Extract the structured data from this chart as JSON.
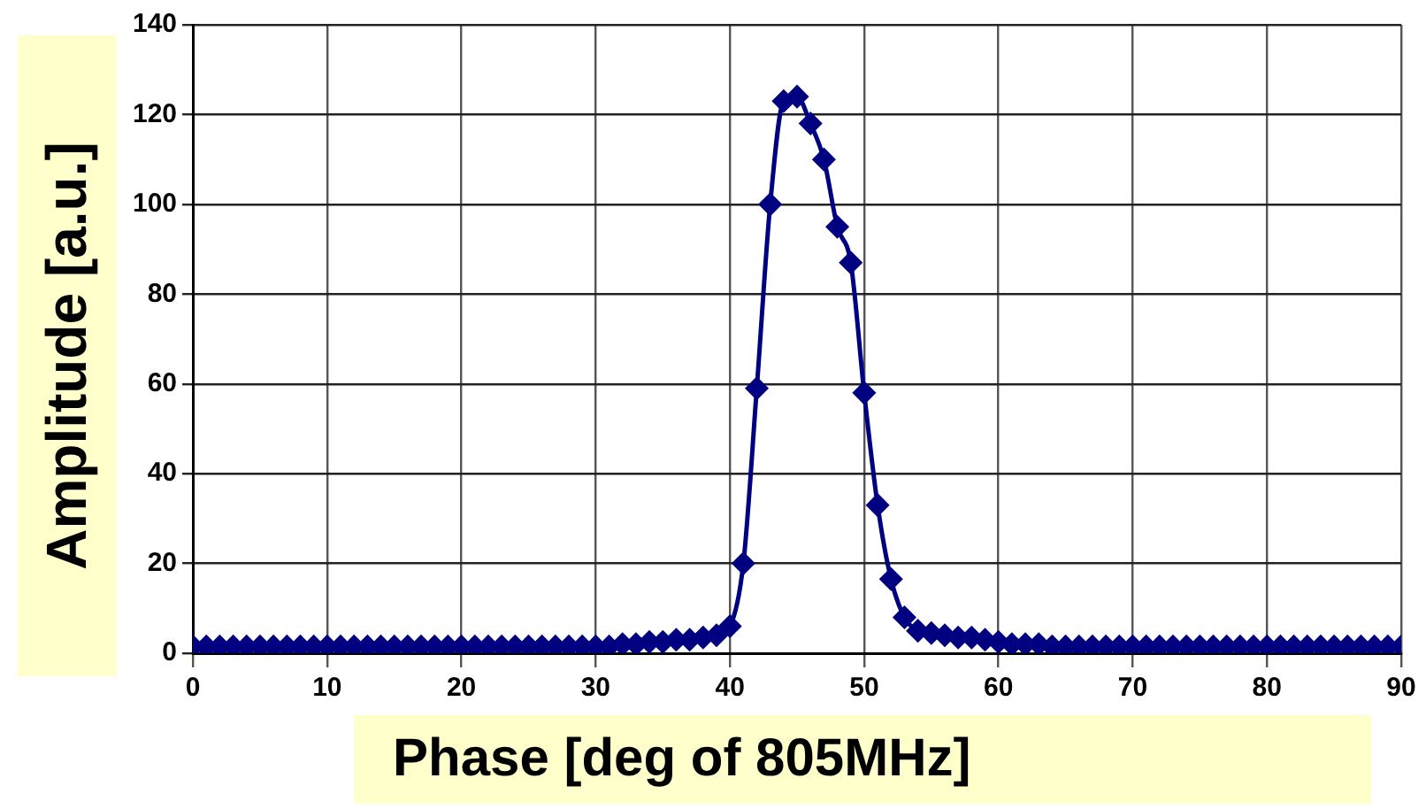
{
  "chart_data": {
    "type": "line",
    "xlabel": "Phase [deg of 805MHz]",
    "ylabel": "Amplitude [a.u.]",
    "x": [
      0,
      1,
      2,
      3,
      4,
      5,
      6,
      7,
      8,
      9,
      10,
      11,
      12,
      13,
      14,
      15,
      16,
      17,
      18,
      19,
      20,
      21,
      22,
      23,
      24,
      25,
      26,
      27,
      28,
      29,
      30,
      31,
      32,
      33,
      34,
      35,
      36,
      37,
      38,
      39,
      40,
      41,
      42,
      43,
      44,
      45,
      46,
      47,
      48,
      49,
      50,
      51,
      52,
      53,
      54,
      55,
      56,
      57,
      58,
      59,
      60,
      61,
      62,
      63,
      64,
      65,
      66,
      67,
      68,
      69,
      70,
      71,
      72,
      73,
      74,
      75,
      76,
      77,
      78,
      79,
      80,
      81,
      82,
      83,
      84,
      85,
      86,
      87,
      88,
      89,
      90
    ],
    "series": [
      {
        "color": "#000080",
        "values": [
          1.5,
          1.5,
          1.5,
          1.5,
          1.5,
          1.5,
          1.5,
          1.5,
          1.5,
          1.5,
          1.5,
          1.5,
          1.5,
          1.5,
          1.5,
          1.5,
          1.5,
          1.5,
          1.5,
          1.5,
          1.5,
          1.5,
          1.5,
          1.5,
          1.5,
          1.5,
          1.5,
          1.5,
          1.5,
          1.5,
          1.5,
          1.5,
          2,
          2,
          2.5,
          2.5,
          3,
          3,
          3.5,
          4,
          6,
          20,
          59,
          100,
          123,
          124,
          118,
          110,
          95,
          87,
          58,
          33,
          16.5,
          8,
          5,
          4.5,
          4,
          3.5,
          3.5,
          3,
          2.5,
          2,
          2,
          2,
          1.5,
          1.5,
          1.5,
          1.5,
          1.5,
          1.5,
          1.5,
          1.5,
          1.5,
          1.5,
          1.5,
          1.5,
          1.5,
          1.5,
          1.5,
          1.5,
          1.5,
          1.5,
          1.5,
          1.5,
          1.5,
          1.5,
          1.5,
          1.5,
          1.5,
          1.5,
          1.5
        ]
      }
    ],
    "xlim": [
      0,
      90
    ],
    "xticks": [
      0,
      10,
      20,
      30,
      40,
      50,
      60,
      70,
      80,
      90
    ],
    "ylim": [
      0,
      140
    ],
    "yticks": [
      0,
      20,
      40,
      60,
      80,
      100,
      120,
      140
    ],
    "grid": true,
    "legend": false,
    "marker": "diamond",
    "line_style": "solid"
  }
}
